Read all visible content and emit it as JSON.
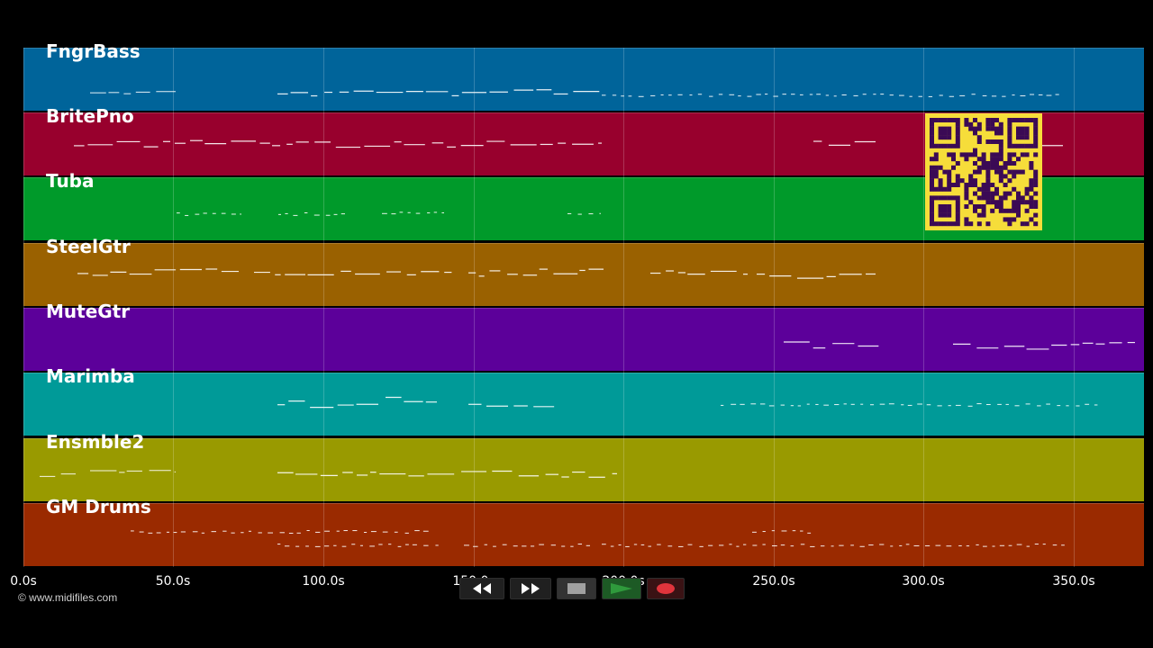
{
  "tracks": [
    {
      "name": "FngrBass",
      "color": "#00649a"
    },
    {
      "name": "BritePno",
      "color": "#98002d"
    },
    {
      "name": "Tuba",
      "color": "#009a2a"
    },
    {
      "name": "SteelGtr",
      "color": "#9a6100"
    },
    {
      "name": "MuteGtr",
      "color": "#5c009a"
    },
    {
      "name": "Marimba",
      "color": "#009a98"
    },
    {
      "name": "Ensmble2",
      "color": "#999a00"
    },
    {
      "name": "GM Drums",
      "color": "#9a2a00"
    }
  ],
  "timeline": {
    "ticks": [
      "0.0s",
      "50.0s",
      "100.0s",
      "150.0s",
      "200.0s",
      "250.0s",
      "300.0s",
      "350.0s"
    ]
  },
  "copyright": "© www.midifiles.com",
  "transport": {
    "rewind_icon": "rewind-icon",
    "fast_forward_icon": "fast-forward-icon",
    "stop_icon": "stop-icon",
    "play_icon": "play-icon",
    "record_icon": "record-icon",
    "play_color": "#2f9a3c",
    "record_color": "#e0343c"
  },
  "qr": {
    "background": "#f6dd3a",
    "foreground": "#3b0a55"
  }
}
